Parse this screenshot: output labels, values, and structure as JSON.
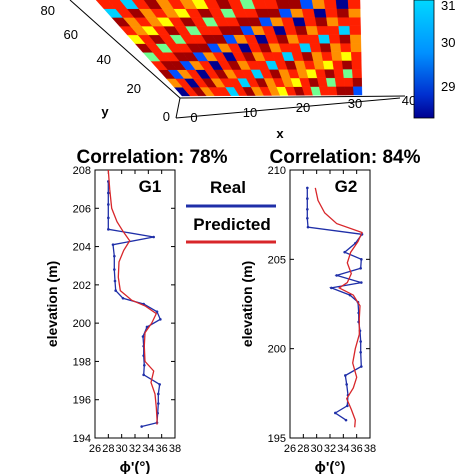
{
  "figure": {
    "top_panel": {
      "y_ticks": [
        "80",
        "60",
        "40",
        "20",
        "0"
      ],
      "x_ticks": [
        "0",
        "10",
        "20",
        "30",
        "40"
      ],
      "y_label": "y",
      "x_label": "x",
      "colorbar_ticks": [
        "31",
        "30",
        "29"
      ],
      "colormap": [
        "#00008f",
        "#0050ff",
        "#00d0ff",
        "#70ff90",
        "#ffff00",
        "#ff9000",
        "#ff2000",
        "#a00000"
      ]
    },
    "legend": {
      "entries": [
        {
          "label": "Real",
          "color": "#1f2fa8"
        },
        {
          "label": "Predicted",
          "color": "#d8262a"
        }
      ]
    },
    "panels": [
      {
        "title": "Correlation: 78%",
        "tag": "G1"
      },
      {
        "title": "Correlation: 84%",
        "tag": "G2"
      }
    ]
  },
  "chart_data": [
    {
      "type": "line",
      "title": "Correlation: 78%",
      "annotation": "G1",
      "xlabel": "ϕ'(°)",
      "ylabel": "elevation (m)",
      "xlim": [
        26,
        38
      ],
      "ylim": [
        194,
        208
      ],
      "x_ticks": [
        26,
        28,
        30,
        32,
        34,
        36,
        38
      ],
      "y_ticks": [
        194,
        196,
        198,
        200,
        202,
        204,
        206,
        208
      ],
      "series": [
        {
          "name": "Real",
          "color": "#1f2fa8",
          "markers": true,
          "points": [
            [
              28,
              207.4
            ],
            [
              28,
              206.8
            ],
            [
              28,
              206.2
            ],
            [
              28,
              205.5
            ],
            [
              28,
              204.9
            ],
            [
              34.8,
              204.5
            ],
            [
              28.7,
              204.1
            ],
            [
              28.9,
              203.5
            ],
            [
              28.9,
              202.8
            ],
            [
              29,
              202.2
            ],
            [
              29.1,
              201.7
            ],
            [
              30.2,
              201.3
            ],
            [
              33.3,
              201.0
            ],
            [
              35.3,
              200.6
            ],
            [
              35.8,
              200.2
            ],
            [
              33.8,
              199.8
            ],
            [
              33.2,
              199.3
            ],
            [
              33.3,
              198.8
            ],
            [
              33.3,
              198.3
            ],
            [
              33.4,
              197.8
            ],
            [
              33.3,
              197.3
            ],
            [
              35.7,
              196.8
            ],
            [
              35.5,
              196.3
            ],
            [
              35.5,
              195.8
            ],
            [
              35.4,
              195.3
            ],
            [
              35.3,
              194.8
            ],
            [
              33.0,
              194.6
            ]
          ]
        },
        {
          "name": "Predicted",
          "color": "#d8262a",
          "markers": false,
          "points": [
            [
              28,
              208.0
            ],
            [
              28.2,
              207.0
            ],
            [
              28.5,
              206.0
            ],
            [
              29.3,
              205.3
            ],
            [
              30.2,
              204.8
            ],
            [
              31.2,
              204.3
            ],
            [
              30.3,
              203.8
            ],
            [
              29.6,
              203.2
            ],
            [
              29.5,
              202.4
            ],
            [
              29.8,
              201.7
            ],
            [
              31.5,
              201.2
            ],
            [
              33.5,
              200.9
            ],
            [
              35.2,
              200.5
            ],
            [
              34.5,
              200.0
            ],
            [
              33.5,
              199.5
            ],
            [
              33.4,
              198.8
            ],
            [
              33.5,
              198.0
            ],
            [
              34.8,
              197.5
            ],
            [
              34.4,
              196.9
            ],
            [
              35.0,
              196.3
            ],
            [
              35.2,
              195.6
            ],
            [
              35.3,
              195.0
            ],
            [
              35.3,
              194.7
            ]
          ]
        }
      ]
    },
    {
      "type": "line",
      "title": "Correlation: 84%",
      "annotation": "G2",
      "xlabel": "ϕ'(°)",
      "ylabel": "elevation (m)",
      "xlim": [
        26,
        38
      ],
      "ylim": [
        195,
        210
      ],
      "x_ticks": [
        26,
        28,
        30,
        32,
        34,
        36,
        38
      ],
      "y_ticks": [
        195,
        200,
        205,
        210
      ],
      "series": [
        {
          "name": "Real",
          "color": "#1f2fa8",
          "markers": true,
          "points": [
            [
              28.6,
              209.0
            ],
            [
              28.6,
              208.4
            ],
            [
              28.6,
              207.8
            ],
            [
              28.6,
              207.3
            ],
            [
              28.7,
              206.8
            ],
            [
              36.8,
              206.4
            ],
            [
              35.8,
              205.9
            ],
            [
              34.2,
              205.4
            ],
            [
              36.7,
              205.0
            ],
            [
              36.6,
              204.5
            ],
            [
              33.0,
              204.1
            ],
            [
              36.7,
              203.7
            ],
            [
              32.2,
              203.4
            ],
            [
              35.0,
              203.0
            ],
            [
              36.2,
              202.6
            ],
            [
              36.3,
              202.0
            ],
            [
              36.3,
              201.5
            ],
            [
              36.5,
              201.0
            ],
            [
              36.6,
              200.4
            ],
            [
              36.6,
              199.8
            ],
            [
              36.7,
              199.0
            ],
            [
              34.3,
              198.5
            ],
            [
              34.5,
              198.0
            ],
            [
              34.7,
              197.4
            ],
            [
              34.6,
              196.8
            ],
            [
              32.8,
              196.4
            ],
            [
              34.4,
              196.0
            ]
          ]
        },
        {
          "name": "Predicted",
          "color": "#d8262a",
          "markers": false,
          "points": [
            [
              29.8,
              209.0
            ],
            [
              30.2,
              208.3
            ],
            [
              31.2,
              207.6
            ],
            [
              33.0,
              207.0
            ],
            [
              36.8,
              206.5
            ],
            [
              36.2,
              206.0
            ],
            [
              35.1,
              205.4
            ],
            [
              34.6,
              204.8
            ],
            [
              35.2,
              204.2
            ],
            [
              34.6,
              203.7
            ],
            [
              33.4,
              203.4
            ],
            [
              35.5,
              203.0
            ],
            [
              36.5,
              202.4
            ],
            [
              36.4,
              201.7
            ],
            [
              36.4,
              200.8
            ],
            [
              35.8,
              200.0
            ],
            [
              35.4,
              199.2
            ],
            [
              36.0,
              198.4
            ],
            [
              35.5,
              197.8
            ],
            [
              34.5,
              197.2
            ],
            [
              35.2,
              196.6
            ],
            [
              35.8,
              196.0
            ],
            [
              35.7,
              195.6
            ]
          ]
        }
      ]
    }
  ]
}
